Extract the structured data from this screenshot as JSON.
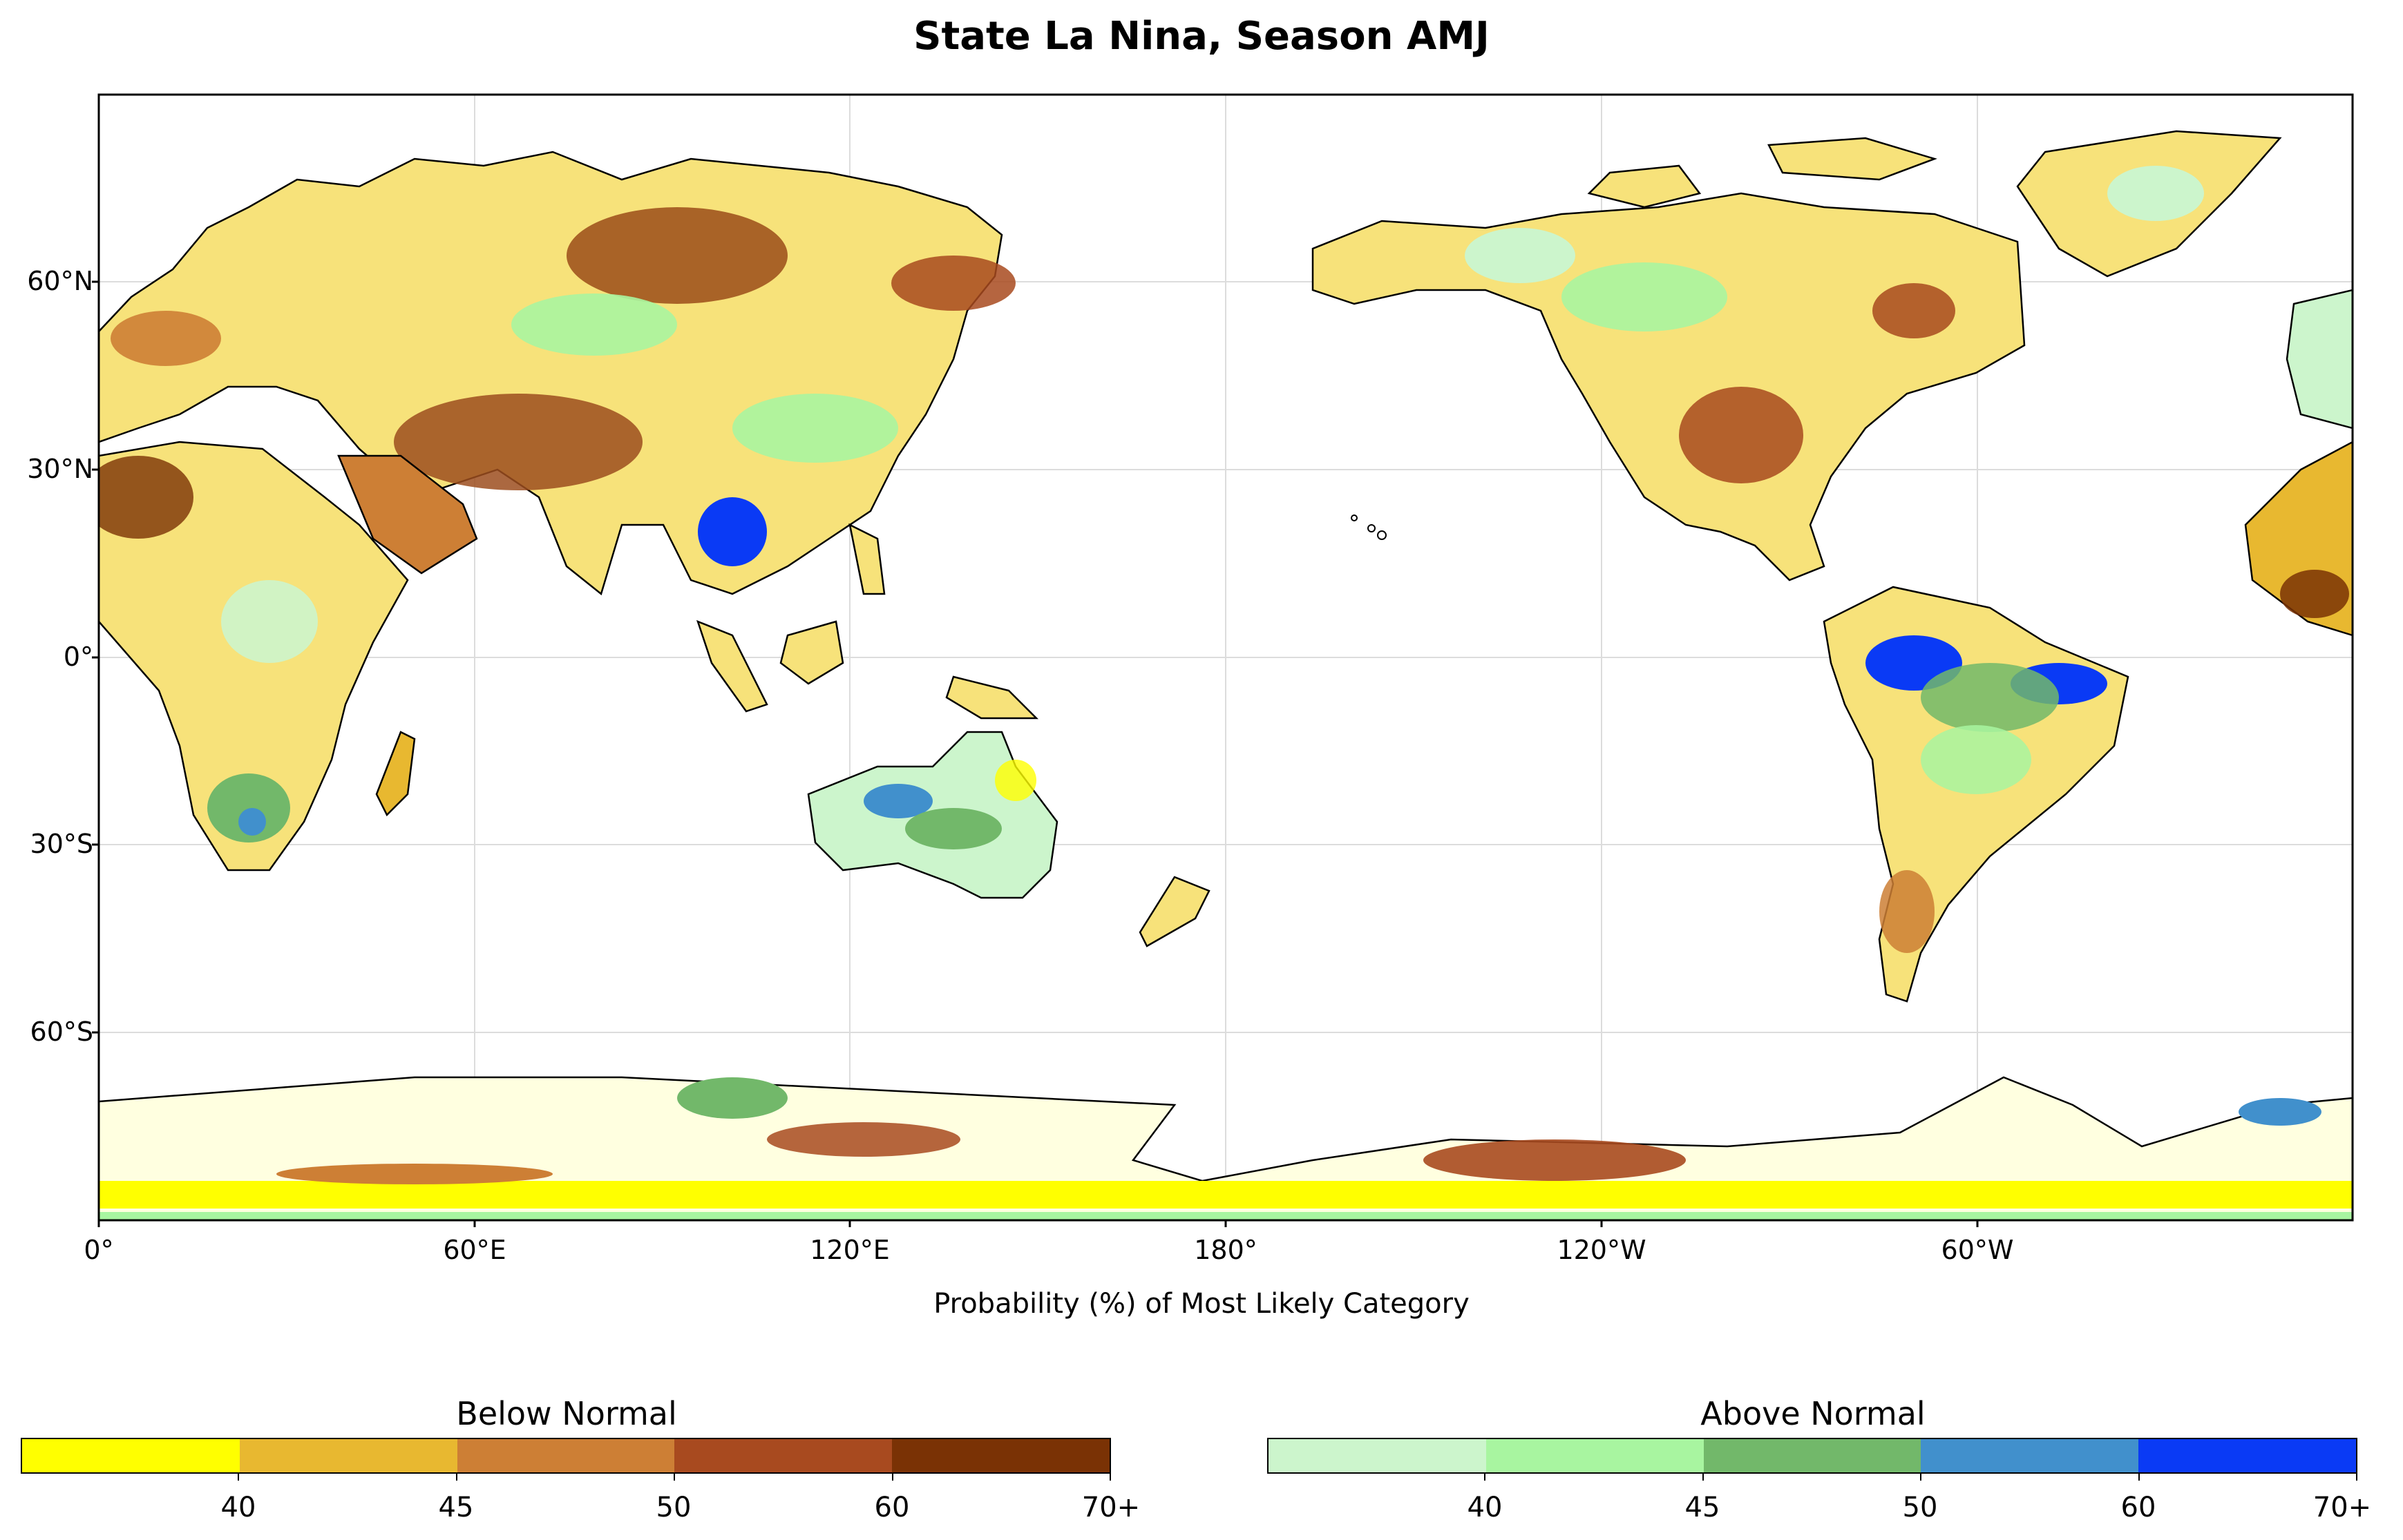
{
  "title": "State La Nina, Season AMJ",
  "xlabel": "Probability (%) of Most Likely Category",
  "map": {
    "projection": "PlateCarree",
    "central_longitude": 180,
    "extent": {
      "lon": [
        0,
        360
      ],
      "lat": [
        -90,
        90
      ]
    },
    "latitude_ticks": [
      "60°N",
      "30°N",
      "0°",
      "30°S",
      "60°S"
    ],
    "longitude_ticks": [
      "0°",
      "60°E",
      "120°E",
      "180°",
      "120°W",
      "60°W"
    ],
    "gridlines": true,
    "ocean_color": "#ffffff",
    "coastline_color": "#000000"
  },
  "colorbars": [
    {
      "title": "Below Normal",
      "colors": [
        "#ffff00",
        "#e8b830",
        "#cd7f35",
        "#a84a1f",
        "#7a3205"
      ],
      "ticks": [
        "40",
        "45",
        "50",
        "60",
        "70+"
      ]
    },
    {
      "title": "Above Normal",
      "colors": [
        "#ccf5cc",
        "#a8f5a0",
        "#72b86a",
        "#4190cc",
        "#0a3af5"
      ],
      "ticks": [
        "40",
        "45",
        "50",
        "60",
        "70+"
      ]
    }
  ]
}
